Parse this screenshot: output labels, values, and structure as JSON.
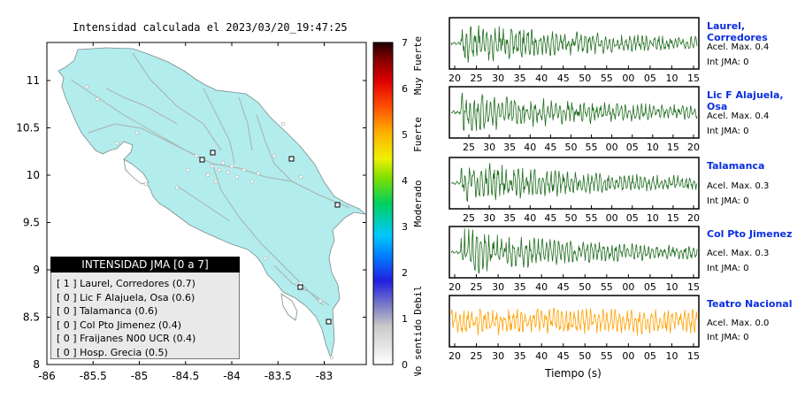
{
  "map": {
    "title": "Intensidad calculada el 2023/03/20_19:47:25",
    "lon_ticks": [
      "-86",
      "-85.5",
      "-85",
      "-84.5",
      "-84",
      "-83.5",
      "-83"
    ],
    "lat_ticks": [
      "8",
      "8.5",
      "9",
      "9.5",
      "10",
      "10.5",
      "11"
    ],
    "legend": {
      "title": "INTENSIDAD JMA [0 a 7]",
      "rows": [
        "[ 1 ]  Laurel, Corredores (0.7)",
        "[ 0 ]  Lic F Alajuela, Osa (0.6)",
        "[ 0 ]  Talamanca (0.6)",
        "[ 0 ]  Col Pto Jimenez (0.4)",
        "[ 0 ]  Fraijanes N00 UCR (0.4)",
        "[ 0 ]  Hosp. Grecia (0.5)"
      ]
    },
    "colors": {
      "land": "#b3ecec",
      "road": "#a8b0b0",
      "station": "#ffffff"
    }
  },
  "colorbar": {
    "ticks": [
      "0",
      "1",
      "2",
      "3",
      "4",
      "5",
      "6",
      "7"
    ],
    "labels": [
      "No sentido",
      "Debil",
      "Moderado",
      "Fuerte",
      "Muy Fuerte"
    ]
  },
  "waveforms": {
    "xlabel": "Tiempo (s)",
    "stations": [
      {
        "name": "Laurel, Corredores",
        "acel": "Acel. Max. 0.4",
        "int": "Int JMA: 0",
        "color": "#1f6e1f",
        "ticks": [
          "20",
          "25",
          "30",
          "35",
          "40",
          "45",
          "50",
          "55",
          "00",
          "05",
          "10",
          "15"
        ]
      },
      {
        "name": "Lic F Alajuela, Osa",
        "acel": "Acel. Max. 0.4",
        "int": "Int JMA: 0",
        "color": "#1f6e1f",
        "ticks": [
          "25",
          "30",
          "35",
          "40",
          "45",
          "50",
          "55",
          "00",
          "05",
          "10",
          "15",
          "20"
        ]
      },
      {
        "name": "Talamanca",
        "acel": "Acel. Max. 0.3",
        "int": "Int JMA: 0",
        "color": "#1f6e1f",
        "ticks": [
          "25",
          "30",
          "35",
          "40",
          "45",
          "50",
          "55",
          "00",
          "05",
          "10",
          "15",
          "20"
        ]
      },
      {
        "name": "Col Pto Jimenez",
        "acel": "Acel. Max. 0.3",
        "int": "Int JMA: 0",
        "color": "#1f6e1f",
        "ticks": [
          "20",
          "25",
          "30",
          "35",
          "40",
          "45",
          "50",
          "55",
          "00",
          "05",
          "10",
          "15"
        ]
      },
      {
        "name": "Teatro Nacional",
        "acel": "Acel. Max. 0.0",
        "int": "Int JMA: 0",
        "color": "#ffa000",
        "ticks": [
          "20",
          "25",
          "30",
          "35",
          "40",
          "45",
          "50",
          "55",
          "00",
          "05",
          "10",
          "15"
        ]
      }
    ]
  },
  "chart_data": [
    {
      "type": "scatter",
      "title": "Intensidad calculada el 2023/03/20_19:47:25",
      "xlim": [
        -86,
        -82.55
      ],
      "ylim": [
        8,
        11.4
      ],
      "series": [
        {
          "name": "Laurel, Corredores",
          "x": [
            -82.95
          ],
          "y": [
            8.58
          ]
        },
        {
          "name": "Lic F Alajuela, Osa",
          "x": [
            -83.25
          ],
          "y": [
            8.68
          ]
        },
        {
          "name": "Talamanca",
          "x": [
            -82.82
          ],
          "y": [
            9.62
          ]
        },
        {
          "name": "Col Pto Jimenez",
          "x": [
            -83.3
          ],
          "y": [
            8.69
          ]
        },
        {
          "name": "Fraijanes N00 UCR",
          "x": [
            -84.2
          ],
          "y": [
            10.13
          ]
        },
        {
          "name": "Hosp. Grecia",
          "x": [
            -84.3
          ],
          "y": [
            10.07
          ]
        },
        {
          "name": "",
          "x": [
            -83.6
          ],
          "y": [
            10.08
          ]
        }
      ]
    }
  ]
}
